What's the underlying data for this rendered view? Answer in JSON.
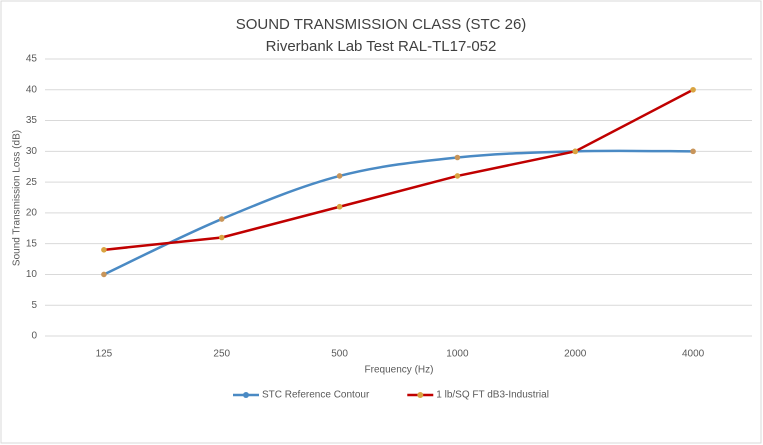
{
  "chart_data": {
    "type": "line",
    "title": "SOUND TRANSMISSION CLASS (STC 26)",
    "subtitle": "Riverbank Lab Test RAL-TL17-052",
    "x_label": "Frequency (Hz)",
    "y_label": "Sound Transmission Loss (dB)",
    "categories": [
      "125",
      "250",
      "500",
      "1000",
      "2000",
      "4000"
    ],
    "series": [
      {
        "name": "STC Reference Contour",
        "color": "#4a8ac4",
        "marker_color": "#c8955a",
        "smooth": true,
        "values": [
          10,
          19,
          26,
          29,
          30,
          30
        ]
      },
      {
        "name": "1 lb/SQ FT dB3-Industrial",
        "color": "#c00000",
        "marker_color": "#d9a441",
        "smooth": false,
        "values": [
          14,
          16,
          21,
          26,
          30,
          40
        ]
      }
    ],
    "ylim": [
      0,
      45
    ],
    "yticks": [
      0,
      5,
      10,
      15,
      20,
      25,
      30,
      35,
      40,
      45
    ],
    "grid": true,
    "legend": "bottom"
  }
}
